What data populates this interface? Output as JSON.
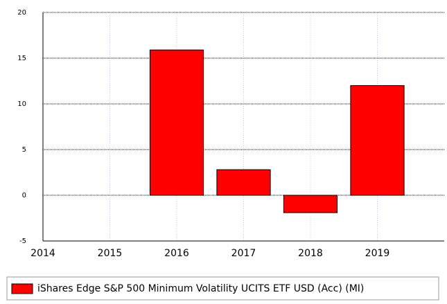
{
  "chart_data": {
    "type": "bar",
    "x": [
      2014,
      2015,
      2016,
      2017,
      2018,
      2019
    ],
    "series": [
      {
        "name": "iShares Edge S&P 500 Minimum Volatility UCITS ETF USD (Acc) (MI)",
        "color": "#ff0000",
        "values": [
          null,
          null,
          15.9,
          2.8,
          -1.9,
          12.0
        ]
      }
    ],
    "xlim": [
      2014,
      2020
    ],
    "xticks": [
      2014,
      2015,
      2016,
      2017,
      2018,
      2019
    ],
    "ylim": [
      -5,
      20
    ],
    "yticks": [
      -5,
      0,
      5,
      10,
      15,
      20
    ],
    "grid": true
  }
}
